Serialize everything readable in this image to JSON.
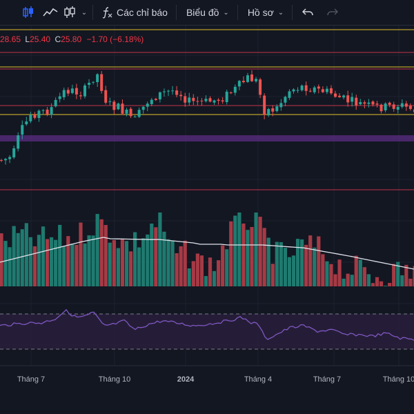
{
  "toolbar": {
    "indicators_label": "Các chỉ báo",
    "chart_label": "Biểu đồ",
    "profile_label": "Hồ sơ"
  },
  "ohlc": {
    "o_fragment": "28.65",
    "l_key": "L",
    "l_value": "25.40",
    "c_key": "C",
    "c_value": "25.80",
    "change": "−1.70 (−6.18%)"
  },
  "xaxis": {
    "labels": [
      "Tháng 7",
      "Tháng 10",
      "2024",
      "Tháng 4",
      "Tháng 7",
      "Tháng 10"
    ]
  },
  "colors": {
    "up": "#26a69a",
    "down": "#ef5350",
    "background": "#131722"
  }
}
